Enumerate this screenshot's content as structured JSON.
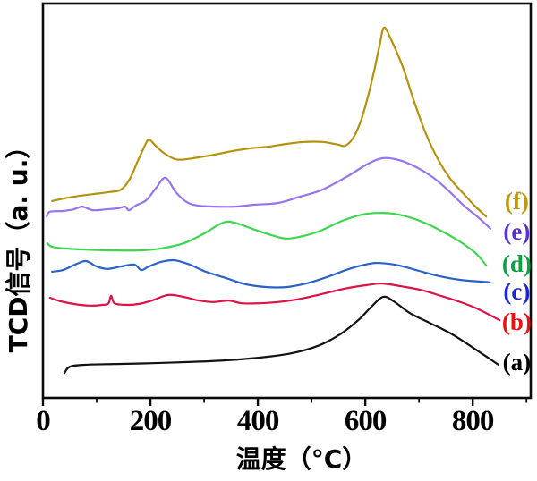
{
  "chart_data": {
    "type": "line",
    "title": "",
    "xlabel": "温度（°C）",
    "ylabel": "TCD信号（a. u.）",
    "x_unit": "°C",
    "y_unit": "a.u.",
    "xlim": [
      0,
      908
    ],
    "ylim": [
      0,
      100
    ],
    "x_major_ticks": [
      0,
      200,
      400,
      600,
      800
    ],
    "x_minor_ticks": [
      100,
      300,
      500,
      700,
      900
    ],
    "y_ticks": [],
    "grid": false,
    "legend_position": "inside-right",
    "note": "TPR profiles; TCD signal in arbitrary units, curves vertically offset",
    "series": [
      {
        "id": "a",
        "label": "(a)",
        "color": "#111116",
        "label_color": "#000000",
        "label_au": 9.1,
        "points": [
          [
            40,
            6.3
          ],
          [
            50,
            7.9
          ],
          [
            78,
            8.4
          ],
          [
            137,
            8.6
          ],
          [
            203,
            8.8
          ],
          [
            270,
            9.1
          ],
          [
            337,
            9.5
          ],
          [
            403,
            10.2
          ],
          [
            462,
            11.3
          ],
          [
            512,
            13.2
          ],
          [
            553,
            16.1
          ],
          [
            587,
            19.7
          ],
          [
            610,
            22.9
          ],
          [
            633,
            25.6
          ],
          [
            653,
            24.5
          ],
          [
            683,
            21.5
          ],
          [
            720,
            19.0
          ],
          [
            762,
            16.1
          ],
          [
            803,
            12.5
          ],
          [
            848,
            8.4
          ]
        ]
      },
      {
        "id": "b",
        "label": "(b)",
        "color": "#dc1445",
        "label_color": "#ee1010",
        "label_au": 19.3,
        "points": [
          [
            13,
            25.4
          ],
          [
            33,
            24.5
          ],
          [
            58,
            23.8
          ],
          [
            87,
            23.4
          ],
          [
            112,
            23.6
          ],
          [
            122,
            24.0
          ],
          [
            127,
            25.9
          ],
          [
            133,
            24.0
          ],
          [
            153,
            23.6
          ],
          [
            178,
            23.8
          ],
          [
            203,
            24.7
          ],
          [
            233,
            26.1
          ],
          [
            262,
            25.6
          ],
          [
            290,
            24.7
          ],
          [
            317,
            24.3
          ],
          [
            345,
            24.7
          ],
          [
            370,
            24.0
          ],
          [
            403,
            24.0
          ],
          [
            437,
            24.3
          ],
          [
            470,
            24.9
          ],
          [
            512,
            26.1
          ],
          [
            562,
            27.7
          ],
          [
            603,
            28.6
          ],
          [
            632,
            29.0
          ],
          [
            667,
            28.3
          ],
          [
            703,
            27.4
          ],
          [
            740,
            25.9
          ],
          [
            773,
            24.5
          ],
          [
            807,
            22.7
          ],
          [
            850,
            19.7
          ]
        ]
      },
      {
        "id": "c",
        "label": "(c)",
        "color": "#2b62ca",
        "label_color": "#1b24d0",
        "label_au": 27.0,
        "points": [
          [
            17,
            32.0
          ],
          [
            37,
            32.4
          ],
          [
            60,
            33.8
          ],
          [
            80,
            34.7
          ],
          [
            100,
            33.3
          ],
          [
            120,
            32.7
          ],
          [
            145,
            33.3
          ],
          [
            170,
            33.8
          ],
          [
            183,
            32.4
          ],
          [
            197,
            33.3
          ],
          [
            220,
            34.5
          ],
          [
            245,
            34.9
          ],
          [
            273,
            33.8
          ],
          [
            303,
            32.0
          ],
          [
            340,
            30.4
          ],
          [
            378,
            28.8
          ],
          [
            417,
            28.1
          ],
          [
            453,
            28.1
          ],
          [
            490,
            29.0
          ],
          [
            528,
            30.6
          ],
          [
            570,
            32.7
          ],
          [
            607,
            34.0
          ],
          [
            628,
            34.2
          ],
          [
            662,
            33.6
          ],
          [
            700,
            32.2
          ],
          [
            740,
            30.8
          ],
          [
            778,
            29.9
          ],
          [
            812,
            29.5
          ],
          [
            832,
            29.3
          ]
        ]
      },
      {
        "id": "d",
        "label": "(d)",
        "color": "#3ed64f",
        "label_color": "#0ba244",
        "label_au": 34.0,
        "points": [
          [
            8,
            39.2
          ],
          [
            17,
            38.3
          ],
          [
            40,
            37.9
          ],
          [
            78,
            37.6
          ],
          [
            128,
            37.4
          ],
          [
            178,
            37.4
          ],
          [
            220,
            37.9
          ],
          [
            262,
            39.2
          ],
          [
            300,
            41.7
          ],
          [
            328,
            44.0
          ],
          [
            345,
            44.7
          ],
          [
            367,
            44.0
          ],
          [
            395,
            42.6
          ],
          [
            425,
            41.3
          ],
          [
            453,
            40.4
          ],
          [
            483,
            41.0
          ],
          [
            517,
            42.4
          ],
          [
            557,
            44.9
          ],
          [
            595,
            46.5
          ],
          [
            625,
            46.9
          ],
          [
            653,
            46.7
          ],
          [
            687,
            45.6
          ],
          [
            720,
            43.8
          ],
          [
            753,
            41.5
          ],
          [
            783,
            39.0
          ],
          [
            807,
            36.5
          ],
          [
            825,
            33.6
          ]
        ]
      },
      {
        "id": "e",
        "label": "(e)",
        "color": "#9873ef",
        "label_color": "#5a30cf",
        "label_au": 42.2,
        "points": [
          [
            7,
            46.0
          ],
          [
            13,
            47.2
          ],
          [
            37,
            47.4
          ],
          [
            57,
            47.8
          ],
          [
            73,
            48.5
          ],
          [
            93,
            47.6
          ],
          [
            117,
            47.8
          ],
          [
            140,
            48.1
          ],
          [
            153,
            48.5
          ],
          [
            160,
            47.6
          ],
          [
            173,
            48.8
          ],
          [
            192,
            50.1
          ],
          [
            210,
            53.1
          ],
          [
            228,
            55.8
          ],
          [
            247,
            52.2
          ],
          [
            267,
            49.7
          ],
          [
            287,
            48.8
          ],
          [
            320,
            48.5
          ],
          [
            357,
            48.5
          ],
          [
            395,
            49.0
          ],
          [
            437,
            49.4
          ],
          [
            478,
            51.0
          ],
          [
            520,
            52.8
          ],
          [
            567,
            56.2
          ],
          [
            603,
            59.2
          ],
          [
            633,
            60.8
          ],
          [
            663,
            60.3
          ],
          [
            695,
            58.5
          ],
          [
            725,
            56.0
          ],
          [
            753,
            52.8
          ],
          [
            783,
            48.8
          ],
          [
            810,
            45.8
          ],
          [
            833,
            42.9
          ]
        ]
      },
      {
        "id": "f",
        "label": "(f)",
        "color": "#b5920c",
        "label_color": "#bf9708",
        "label_au": 49.9,
        "points": [
          [
            17,
            49.9
          ],
          [
            40,
            50.6
          ],
          [
            67,
            51.2
          ],
          [
            95,
            51.7
          ],
          [
            123,
            52.2
          ],
          [
            145,
            52.8
          ],
          [
            162,
            55.6
          ],
          [
            178,
            60.5
          ],
          [
            192,
            64.6
          ],
          [
            198,
            65.5
          ],
          [
            210,
            63.9
          ],
          [
            227,
            61.9
          ],
          [
            247,
            60.5
          ],
          [
            265,
            60.5
          ],
          [
            290,
            61.0
          ],
          [
            320,
            61.7
          ],
          [
            353,
            62.6
          ],
          [
            387,
            63.3
          ],
          [
            420,
            63.7
          ],
          [
            453,
            64.4
          ],
          [
            487,
            64.9
          ],
          [
            520,
            64.9
          ],
          [
            550,
            64.2
          ],
          [
            562,
            63.9
          ],
          [
            577,
            65.8
          ],
          [
            592,
            70.3
          ],
          [
            605,
            76.4
          ],
          [
            617,
            83.2
          ],
          [
            627,
            89.6
          ],
          [
            635,
            93.9
          ],
          [
            648,
            90.9
          ],
          [
            670,
            83.9
          ],
          [
            690,
            75.5
          ],
          [
            713,
            66.9
          ],
          [
            737,
            60.1
          ],
          [
            758,
            55.6
          ],
          [
            780,
            52.2
          ],
          [
            803,
            48.8
          ],
          [
            825,
            46.0
          ]
        ]
      }
    ],
    "legend_x": 882
  }
}
